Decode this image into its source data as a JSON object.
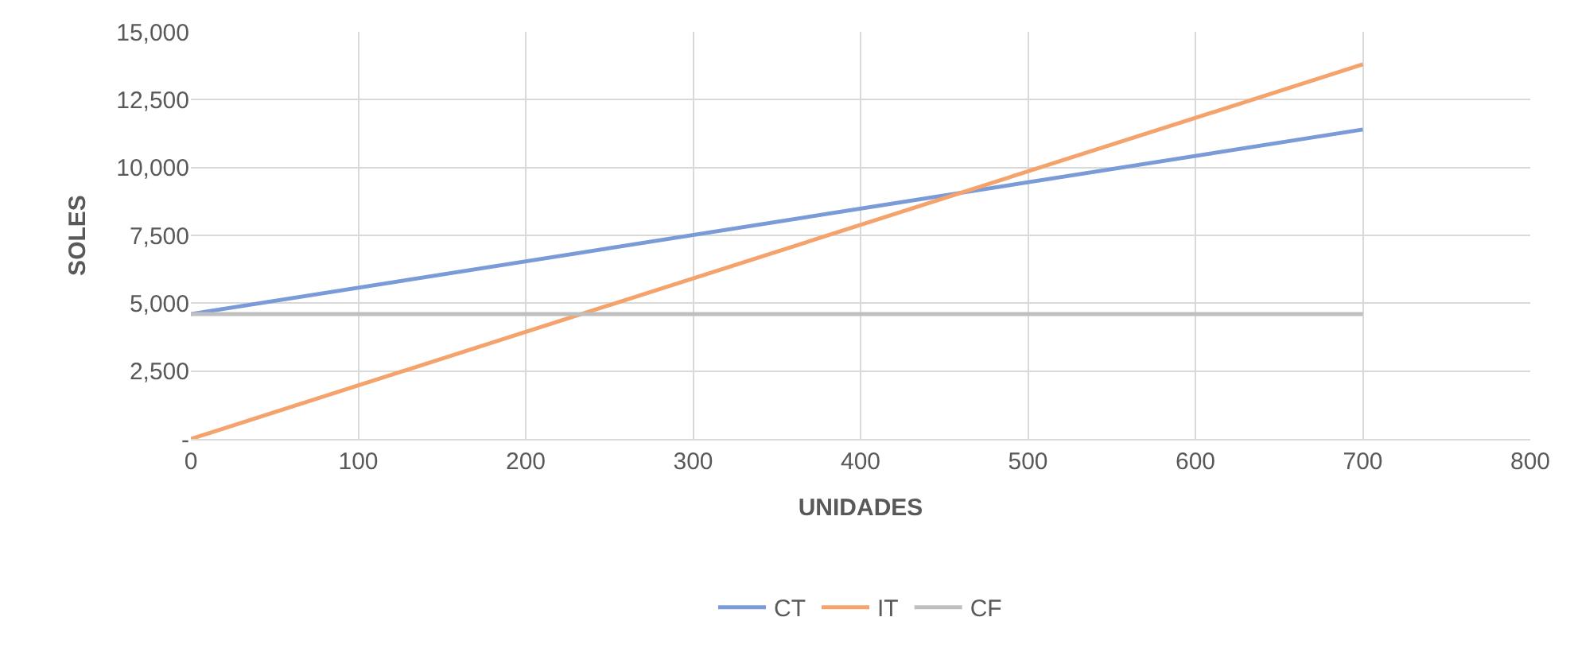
{
  "chart_data": {
    "type": "line",
    "xlabel": "UNIDADES",
    "ylabel": "SOLES",
    "x": [
      0,
      700
    ],
    "series": [
      {
        "name": "CT",
        "color": "#7b9bd8",
        "values": [
          4600,
          11400
        ]
      },
      {
        "name": "IT",
        "color": "#f4a36c",
        "values": [
          0,
          13800
        ]
      },
      {
        "name": "CF",
        "color": "#bfbfbf",
        "values": [
          4600,
          4600
        ]
      }
    ],
    "xlim": [
      0,
      800
    ],
    "xticks": [
      0,
      100,
      200,
      300,
      400,
      500,
      600,
      700,
      800
    ],
    "ylim": [
      0,
      15000
    ],
    "yticks": [
      {
        "value": 0,
        "label": "-"
      },
      {
        "value": 2500,
        "label": "2,500"
      },
      {
        "value": 5000,
        "label": "5,000"
      },
      {
        "value": 7500,
        "label": "7,500"
      },
      {
        "value": 10000,
        "label": "10,000"
      },
      {
        "value": 12500,
        "label": "12,500"
      },
      {
        "value": 15000,
        "label": "15,000"
      }
    ],
    "grid": true,
    "legend": "bottom",
    "marker": "none",
    "line_style": "solid"
  }
}
